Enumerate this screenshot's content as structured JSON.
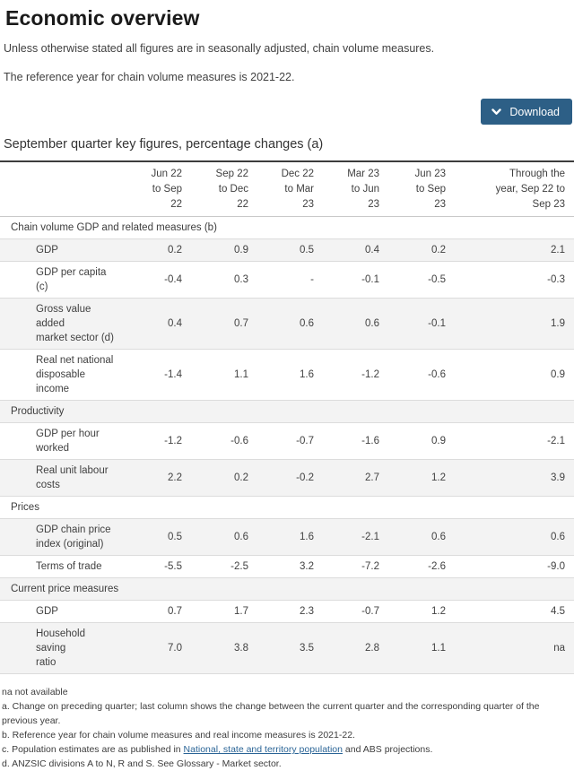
{
  "page": {
    "title": "Economic overview",
    "intro1": "Unless otherwise stated all figures are in seasonally adjusted, chain volume measures.",
    "intro2": "The reference year for chain volume measures is 2021-22."
  },
  "download": {
    "label": "Download",
    "icon": "chevron-down"
  },
  "colors": {
    "accent": "#2d5f86",
    "link": "#2a6496",
    "row_alt": "#f3f3f3"
  },
  "table": {
    "title": "September quarter key figures, percentage changes (a)",
    "columns": [
      "Jun 22\nto Sep\n22",
      "Sep 22\nto Dec\n22",
      "Dec 22\nto Mar\n23",
      "Mar 23\nto Jun\n23",
      "Jun 23\nto Sep\n23",
      "Through the\nyear, Sep 22 to\nSep 23"
    ],
    "rows": [
      {
        "type": "section",
        "label": "Chain volume GDP and related measures (b)"
      },
      {
        "type": "data",
        "label": "GDP",
        "values": [
          "0.2",
          "0.9",
          "0.5",
          "0.4",
          "0.2",
          "2.1"
        ]
      },
      {
        "type": "data",
        "label": "GDP per capita (c)",
        "values": [
          "-0.4",
          "0.3",
          "-",
          "-0.1",
          "-0.5",
          "-0.3"
        ]
      },
      {
        "type": "data",
        "label": "Gross value added\nmarket sector (d)",
        "values": [
          "0.4",
          "0.7",
          "0.6",
          "0.6",
          "-0.1",
          "1.9"
        ]
      },
      {
        "type": "data",
        "label": "Real net national\ndisposable income",
        "values": [
          "-1.4",
          "1.1",
          "1.6",
          "-1.2",
          "-0.6",
          "0.9"
        ]
      },
      {
        "type": "section",
        "label": "Productivity"
      },
      {
        "type": "data",
        "label": "GDP per hour\nworked",
        "values": [
          "-1.2",
          "-0.6",
          "-0.7",
          "-1.6",
          "0.9",
          "-2.1"
        ]
      },
      {
        "type": "data",
        "label": "Real unit labour\ncosts",
        "values": [
          "2.2",
          "0.2",
          "-0.2",
          "2.7",
          "1.2",
          "3.9"
        ]
      },
      {
        "type": "section",
        "label": "Prices"
      },
      {
        "type": "data",
        "label": "GDP chain price\nindex (original)",
        "values": [
          "0.5",
          "0.6",
          "1.6",
          "-2.1",
          "0.6",
          "0.6"
        ]
      },
      {
        "type": "data",
        "label": "Terms of trade",
        "values": [
          "-5.5",
          "-2.5",
          "3.2",
          "-7.2",
          "-2.6",
          "-9.0"
        ]
      },
      {
        "type": "section",
        "label": "Current price measures"
      },
      {
        "type": "data",
        "label": "GDP",
        "values": [
          "0.7",
          "1.7",
          "2.3",
          "-0.7",
          "1.2",
          "4.5"
        ]
      },
      {
        "type": "data",
        "label": "Household saving\nratio",
        "values": [
          "7.0",
          "3.8",
          "3.5",
          "2.8",
          "1.1",
          "na"
        ]
      }
    ]
  },
  "footnotes": {
    "na": "na not available",
    "a": "a. Change on preceding quarter; last column shows the change between the current quarter and the corresponding quarter of the previous year.",
    "b": "b. Reference year for chain volume measures and real income measures is 2021-22.",
    "c_pre": "c. Population estimates are as published in ",
    "c_link": "National, state and territory population",
    "c_post": " and ABS projections.",
    "d": "d. ANZSIC divisions A to N, R and S. See Glossary - Market sector."
  }
}
